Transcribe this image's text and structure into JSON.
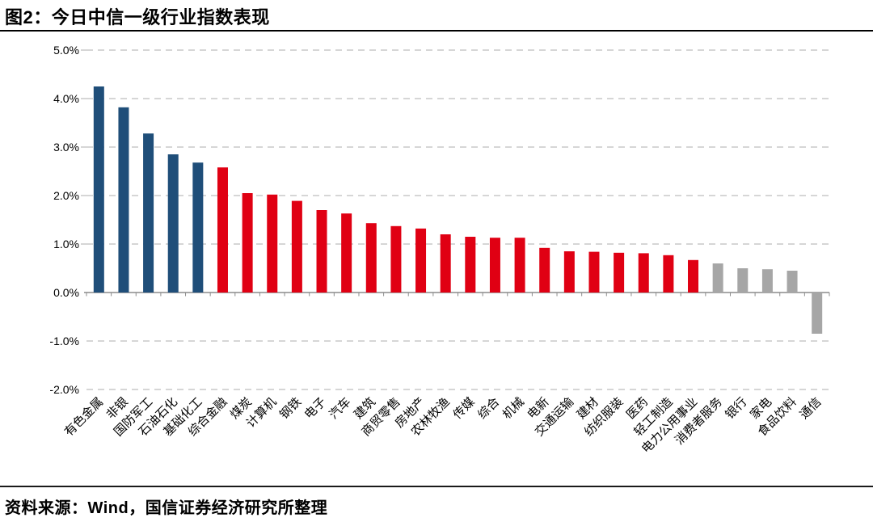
{
  "figure": {
    "title": "图2：今日中信一级行业指数表现",
    "source": "资料来源：Wind，国信证券经济研究所整理"
  },
  "chart_data": {
    "type": "bar",
    "title": "今日中信一级行业指数表现",
    "unit": "%",
    "categories": [
      "有色金属",
      "非银",
      "国防军工",
      "石油石化",
      "基础化工",
      "综合金融",
      "煤炭",
      "计算机",
      "钢铁",
      "电子",
      "汽车",
      "建筑",
      "商贸零售",
      "房地产",
      "农林牧渔",
      "传媒",
      "综合",
      "机械",
      "电新",
      "交通运输",
      "建材",
      "纺织服装",
      "医药",
      "轻工制造",
      "电力公用事业",
      "消费者服务",
      "银行",
      "家电",
      "食品饮料",
      "通信"
    ],
    "values": [
      4.25,
      3.82,
      3.28,
      2.85,
      2.68,
      2.58,
      2.05,
      2.02,
      1.89,
      1.7,
      1.63,
      1.43,
      1.37,
      1.32,
      1.2,
      1.15,
      1.13,
      1.13,
      0.92,
      0.85,
      0.84,
      0.82,
      0.81,
      0.77,
      0.67,
      0.6,
      0.5,
      0.48,
      0.45,
      -0.85
    ],
    "colors": [
      "#1F4E79",
      "#1F4E79",
      "#1F4E79",
      "#1F4E79",
      "#1F4E79",
      "#E00013",
      "#E00013",
      "#E00013",
      "#E00013",
      "#E00013",
      "#E00013",
      "#E00013",
      "#E00013",
      "#E00013",
      "#E00013",
      "#E00013",
      "#E00013",
      "#E00013",
      "#E00013",
      "#E00013",
      "#E00013",
      "#E00013",
      "#E00013",
      "#E00013",
      "#E00013",
      "#A6A6A6",
      "#A6A6A6",
      "#A6A6A6",
      "#A6A6A6",
      "#A6A6A6"
    ],
    "color_meaning": {
      "navy": "#1F4E79",
      "red": "#E00013",
      "gray": "#A6A6A6"
    },
    "xlabel": "",
    "ylabel": "",
    "ylim": [
      -2.0,
      5.0
    ],
    "ytick_labels": [
      "5.0%",
      "4.0%",
      "3.0%",
      "2.0%",
      "1.0%",
      "0.0%",
      "-1.0%",
      "-2.0%"
    ],
    "grid": "horizontal-dashed",
    "legend": "none",
    "x_label_rotation_deg": -45
  }
}
